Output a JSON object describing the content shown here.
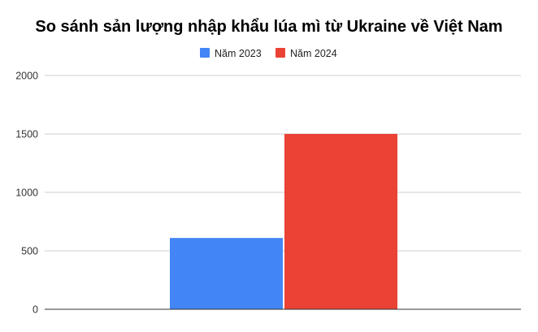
{
  "chart_data": {
    "type": "bar",
    "title": "So sánh sản lượng nhập khẩu lúa mì từ Ukraine về Việt Nam",
    "xlabel": "",
    "ylabel": "",
    "categories": [
      ""
    ],
    "series": [
      {
        "name": "Năm 2023",
        "values": [
          610
        ],
        "color": "#4285f4"
      },
      {
        "name": "Năm 2024",
        "values": [
          1500
        ],
        "color": "#ea4335"
      }
    ],
    "ylim": [
      0,
      2000
    ],
    "yticks": [
      0,
      500,
      1000,
      1500,
      2000
    ],
    "grid": true,
    "legend_position": "top-center",
    "gridline_color": "#cccccc",
    "axis_color": "#333333"
  }
}
